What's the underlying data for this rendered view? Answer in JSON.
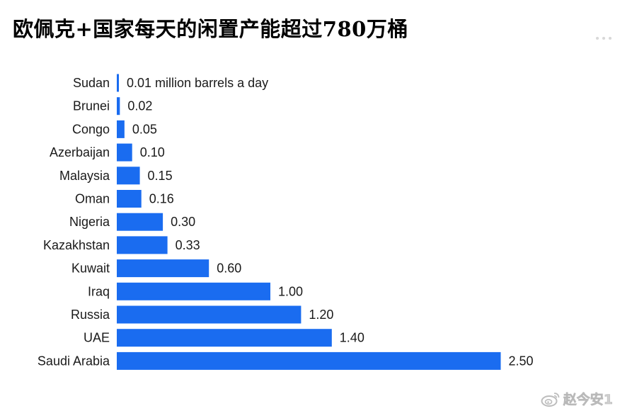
{
  "title": "欧佩克+国家每天的闲置产能超过780万桶",
  "watermark": {
    "text": "赵今安1",
    "icon": "weibo-logo-icon"
  },
  "colors": {
    "bar": "#1a6cf0",
    "label": "#1a1a1a"
  },
  "chart_data": {
    "type": "bar",
    "orientation": "horizontal",
    "title": "欧佩克+国家每天的闲置产能超过780万桶",
    "xlabel": "",
    "ylabel": "",
    "unit_annotation": "million barrels a day",
    "xlim": [
      0,
      2.5
    ],
    "grid": false,
    "legend": "none",
    "categories": [
      "Sudan",
      "Brunei",
      "Congo",
      "Azerbaijan",
      "Malaysia",
      "Oman",
      "Nigeria",
      "Kazakhstan",
      "Kuwait",
      "Iraq",
      "Russia",
      "UAE",
      "Saudi Arabia"
    ],
    "values": [
      0.01,
      0.02,
      0.05,
      0.1,
      0.15,
      0.16,
      0.3,
      0.33,
      0.6,
      1.0,
      1.2,
      1.4,
      2.5
    ],
    "value_labels": [
      "0.01 million barrels a day",
      "0.02",
      "0.05",
      "0.10",
      "0.15",
      "0.16",
      "0.30",
      "0.33",
      "0.60",
      "1.00",
      "1.20",
      "1.40",
      "2.50"
    ]
  }
}
